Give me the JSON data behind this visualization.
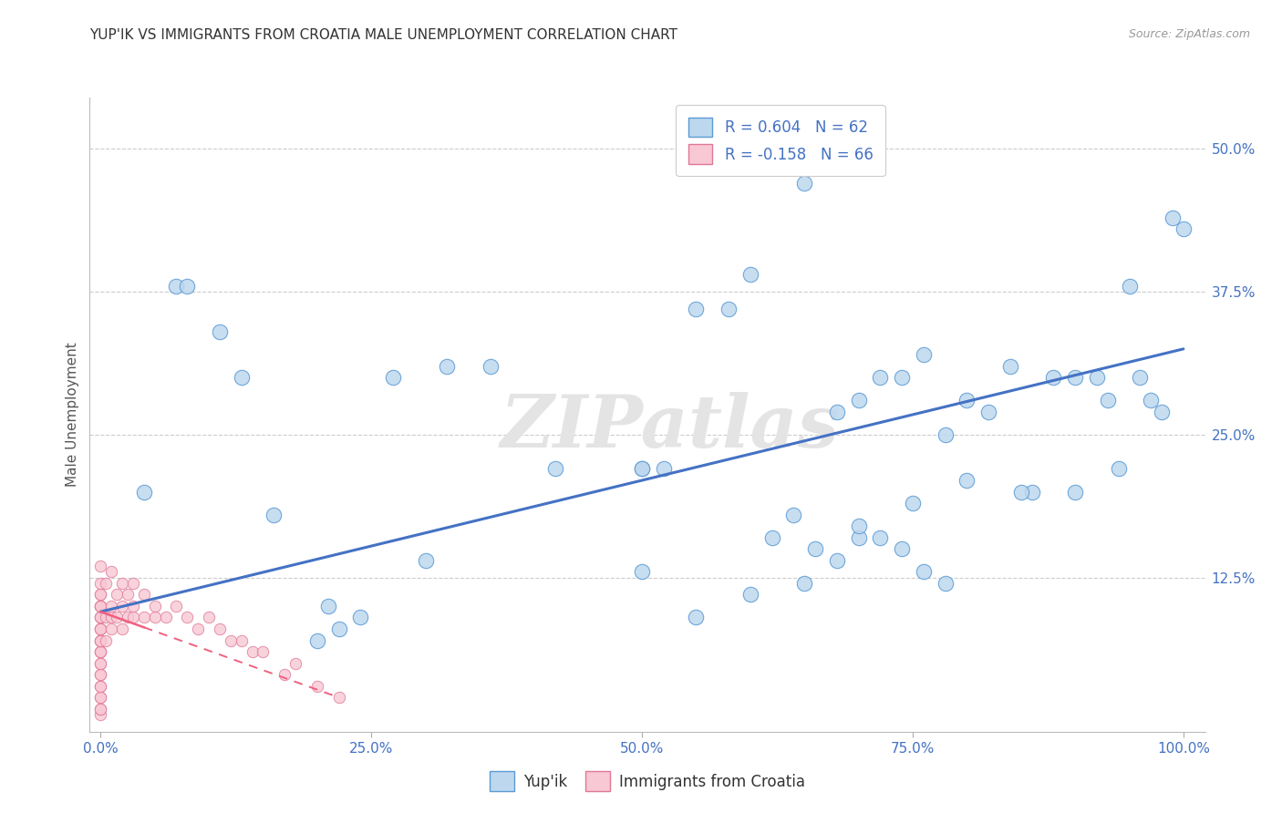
{
  "title": "YUP'IK VS IMMIGRANTS FROM CROATIA MALE UNEMPLOYMENT CORRELATION CHART",
  "source": "Source: ZipAtlas.com",
  "ylabel": "Male Unemployment",
  "xlim": [
    -0.01,
    1.02
  ],
  "ylim": [
    -0.01,
    0.545
  ],
  "xlabel_ticks": [
    "0.0%",
    "25.0%",
    "50.0%",
    "75.0%",
    "100.0%"
  ],
  "xlabel_tick_vals": [
    0.0,
    0.25,
    0.5,
    0.75,
    1.0
  ],
  "right_yticks": [
    "12.5%",
    "25.0%",
    "37.5%",
    "50.0%"
  ],
  "right_ytick_vals": [
    0.125,
    0.25,
    0.375,
    0.5
  ],
  "gridline_vals": [
    0.125,
    0.25,
    0.375,
    0.5
  ],
  "blue_fill": "#BDD7EE",
  "blue_edge": "#5B9BD5",
  "pink_fill": "#F8C8D4",
  "pink_edge": "#E07898",
  "blue_line": "#4472C4",
  "pink_line": "#F06080",
  "tick_color": "#4472C4",
  "legend_r1": "R = 0.604",
  "legend_n1": "N = 62",
  "legend_r2": "R = -0.158",
  "legend_n2": "N = 66",
  "watermark": "ZIPatlas",
  "blue_line_x0": 0.0,
  "blue_line_y0": 0.095,
  "blue_line_x1": 1.0,
  "blue_line_y1": 0.325,
  "pink_line_x0": 0.0,
  "pink_line_y0": 0.095,
  "pink_line_x1_solid": 0.04,
  "pink_line_x1_dash": 0.22,
  "pink_line_y1_dash": 0.02,
  "yup_x": [
    0.04,
    0.07,
    0.08,
    0.11,
    0.13,
    0.16,
    0.2,
    0.21,
    0.22,
    0.24,
    0.27,
    0.3,
    0.32,
    0.36,
    0.42,
    0.5,
    0.5,
    0.52,
    0.55,
    0.58,
    0.6,
    0.62,
    0.65,
    0.68,
    0.7,
    0.72,
    0.74,
    0.76,
    0.78,
    0.8,
    0.82,
    0.84,
    0.86,
    0.88,
    0.9,
    0.92,
    0.93,
    0.94,
    0.95,
    0.96,
    0.97,
    0.98,
    0.99,
    1.0,
    0.5,
    0.55,
    0.6,
    0.65,
    0.7,
    0.75,
    0.8,
    0.85,
    0.9,
    0.62,
    0.64,
    0.66,
    0.68,
    0.7,
    0.72,
    0.74,
    0.76,
    0.78
  ],
  "yup_y": [
    0.2,
    0.38,
    0.38,
    0.34,
    0.3,
    0.18,
    0.07,
    0.1,
    0.08,
    0.09,
    0.3,
    0.14,
    0.31,
    0.31,
    0.22,
    0.22,
    0.13,
    0.22,
    0.36,
    0.36,
    0.39,
    0.5,
    0.47,
    0.27,
    0.28,
    0.3,
    0.3,
    0.32,
    0.25,
    0.28,
    0.27,
    0.31,
    0.2,
    0.3,
    0.3,
    0.3,
    0.28,
    0.22,
    0.38,
    0.3,
    0.28,
    0.27,
    0.44,
    0.43,
    0.22,
    0.09,
    0.11,
    0.12,
    0.16,
    0.19,
    0.21,
    0.2,
    0.2,
    0.16,
    0.18,
    0.15,
    0.14,
    0.17,
    0.16,
    0.15,
    0.13,
    0.12
  ],
  "croatia_x": [
    0.0,
    0.0,
    0.0,
    0.0,
    0.0,
    0.0,
    0.0,
    0.0,
    0.0,
    0.0,
    0.0,
    0.0,
    0.0,
    0.0,
    0.0,
    0.0,
    0.0,
    0.0,
    0.0,
    0.0,
    0.0,
    0.0,
    0.0,
    0.0,
    0.0,
    0.0,
    0.0,
    0.0,
    0.0,
    0.0,
    0.005,
    0.005,
    0.005,
    0.01,
    0.01,
    0.01,
    0.01,
    0.015,
    0.015,
    0.02,
    0.02,
    0.02,
    0.025,
    0.025,
    0.03,
    0.03,
    0.03,
    0.04,
    0.04,
    0.05,
    0.05,
    0.06,
    0.07,
    0.08,
    0.09,
    0.1,
    0.11,
    0.12,
    0.13,
    0.14,
    0.15,
    0.17,
    0.18,
    0.2,
    0.22,
    0.0
  ],
  "croatia_y": [
    0.005,
    0.01,
    0.01,
    0.02,
    0.02,
    0.03,
    0.03,
    0.04,
    0.04,
    0.05,
    0.05,
    0.06,
    0.06,
    0.06,
    0.07,
    0.07,
    0.07,
    0.08,
    0.08,
    0.08,
    0.09,
    0.09,
    0.09,
    0.1,
    0.1,
    0.1,
    0.1,
    0.11,
    0.11,
    0.12,
    0.07,
    0.09,
    0.12,
    0.08,
    0.09,
    0.1,
    0.13,
    0.09,
    0.11,
    0.08,
    0.1,
    0.12,
    0.09,
    0.11,
    0.09,
    0.1,
    0.12,
    0.09,
    0.11,
    0.09,
    0.1,
    0.09,
    0.1,
    0.09,
    0.08,
    0.09,
    0.08,
    0.07,
    0.07,
    0.06,
    0.06,
    0.04,
    0.05,
    0.03,
    0.02,
    0.135
  ]
}
